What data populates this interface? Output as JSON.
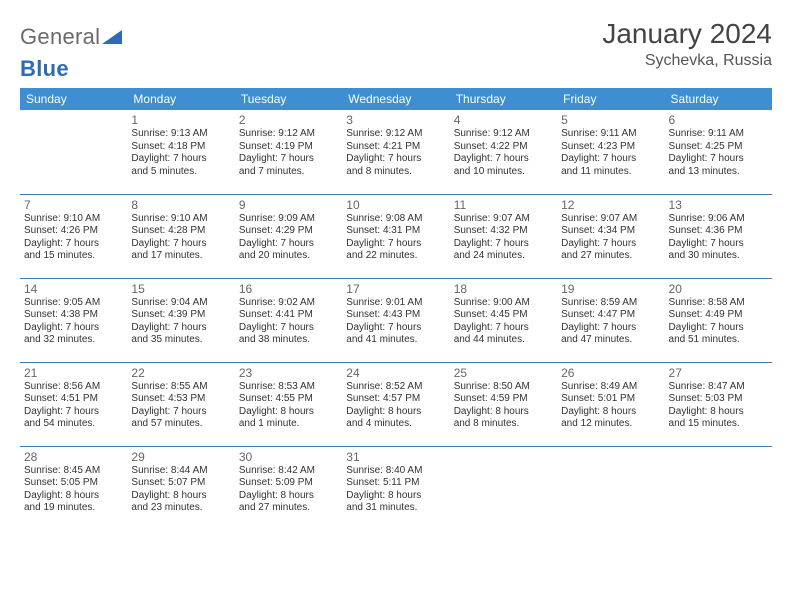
{
  "logo": {
    "part1": "General",
    "part2": "Blue"
  },
  "title": "January 2024",
  "location": "Sychevka, Russia",
  "colors": {
    "header_bg": "#3d8fd1",
    "header_text": "#ffffff",
    "row_border": "#3d7db0",
    "page_bg": "#ffffff",
    "logo_gray": "#6a6a6a",
    "logo_blue": "#2d6db3"
  },
  "typography": {
    "title_fontsize": 28,
    "location_fontsize": 16,
    "dayhead_fontsize": 12,
    "daynum_fontsize": 12,
    "body_fontsize": 10
  },
  "day_headers": [
    "Sunday",
    "Monday",
    "Tuesday",
    "Wednesday",
    "Thursday",
    "Friday",
    "Saturday"
  ],
  "weeks": [
    [
      {
        "num": "",
        "sunrise": "",
        "sunset": "",
        "daylight1": "",
        "daylight2": ""
      },
      {
        "num": "1",
        "sunrise": "Sunrise: 9:13 AM",
        "sunset": "Sunset: 4:18 PM",
        "daylight1": "Daylight: 7 hours",
        "daylight2": "and 5 minutes."
      },
      {
        "num": "2",
        "sunrise": "Sunrise: 9:12 AM",
        "sunset": "Sunset: 4:19 PM",
        "daylight1": "Daylight: 7 hours",
        "daylight2": "and 7 minutes."
      },
      {
        "num": "3",
        "sunrise": "Sunrise: 9:12 AM",
        "sunset": "Sunset: 4:21 PM",
        "daylight1": "Daylight: 7 hours",
        "daylight2": "and 8 minutes."
      },
      {
        "num": "4",
        "sunrise": "Sunrise: 9:12 AM",
        "sunset": "Sunset: 4:22 PM",
        "daylight1": "Daylight: 7 hours",
        "daylight2": "and 10 minutes."
      },
      {
        "num": "5",
        "sunrise": "Sunrise: 9:11 AM",
        "sunset": "Sunset: 4:23 PM",
        "daylight1": "Daylight: 7 hours",
        "daylight2": "and 11 minutes."
      },
      {
        "num": "6",
        "sunrise": "Sunrise: 9:11 AM",
        "sunset": "Sunset: 4:25 PM",
        "daylight1": "Daylight: 7 hours",
        "daylight2": "and 13 minutes."
      }
    ],
    [
      {
        "num": "7",
        "sunrise": "Sunrise: 9:10 AM",
        "sunset": "Sunset: 4:26 PM",
        "daylight1": "Daylight: 7 hours",
        "daylight2": "and 15 minutes."
      },
      {
        "num": "8",
        "sunrise": "Sunrise: 9:10 AM",
        "sunset": "Sunset: 4:28 PM",
        "daylight1": "Daylight: 7 hours",
        "daylight2": "and 17 minutes."
      },
      {
        "num": "9",
        "sunrise": "Sunrise: 9:09 AM",
        "sunset": "Sunset: 4:29 PM",
        "daylight1": "Daylight: 7 hours",
        "daylight2": "and 20 minutes."
      },
      {
        "num": "10",
        "sunrise": "Sunrise: 9:08 AM",
        "sunset": "Sunset: 4:31 PM",
        "daylight1": "Daylight: 7 hours",
        "daylight2": "and 22 minutes."
      },
      {
        "num": "11",
        "sunrise": "Sunrise: 9:07 AM",
        "sunset": "Sunset: 4:32 PM",
        "daylight1": "Daylight: 7 hours",
        "daylight2": "and 24 minutes."
      },
      {
        "num": "12",
        "sunrise": "Sunrise: 9:07 AM",
        "sunset": "Sunset: 4:34 PM",
        "daylight1": "Daylight: 7 hours",
        "daylight2": "and 27 minutes."
      },
      {
        "num": "13",
        "sunrise": "Sunrise: 9:06 AM",
        "sunset": "Sunset: 4:36 PM",
        "daylight1": "Daylight: 7 hours",
        "daylight2": "and 30 minutes."
      }
    ],
    [
      {
        "num": "14",
        "sunrise": "Sunrise: 9:05 AM",
        "sunset": "Sunset: 4:38 PM",
        "daylight1": "Daylight: 7 hours",
        "daylight2": "and 32 minutes."
      },
      {
        "num": "15",
        "sunrise": "Sunrise: 9:04 AM",
        "sunset": "Sunset: 4:39 PM",
        "daylight1": "Daylight: 7 hours",
        "daylight2": "and 35 minutes."
      },
      {
        "num": "16",
        "sunrise": "Sunrise: 9:02 AM",
        "sunset": "Sunset: 4:41 PM",
        "daylight1": "Daylight: 7 hours",
        "daylight2": "and 38 minutes."
      },
      {
        "num": "17",
        "sunrise": "Sunrise: 9:01 AM",
        "sunset": "Sunset: 4:43 PM",
        "daylight1": "Daylight: 7 hours",
        "daylight2": "and 41 minutes."
      },
      {
        "num": "18",
        "sunrise": "Sunrise: 9:00 AM",
        "sunset": "Sunset: 4:45 PM",
        "daylight1": "Daylight: 7 hours",
        "daylight2": "and 44 minutes."
      },
      {
        "num": "19",
        "sunrise": "Sunrise: 8:59 AM",
        "sunset": "Sunset: 4:47 PM",
        "daylight1": "Daylight: 7 hours",
        "daylight2": "and 47 minutes."
      },
      {
        "num": "20",
        "sunrise": "Sunrise: 8:58 AM",
        "sunset": "Sunset: 4:49 PM",
        "daylight1": "Daylight: 7 hours",
        "daylight2": "and 51 minutes."
      }
    ],
    [
      {
        "num": "21",
        "sunrise": "Sunrise: 8:56 AM",
        "sunset": "Sunset: 4:51 PM",
        "daylight1": "Daylight: 7 hours",
        "daylight2": "and 54 minutes."
      },
      {
        "num": "22",
        "sunrise": "Sunrise: 8:55 AM",
        "sunset": "Sunset: 4:53 PM",
        "daylight1": "Daylight: 7 hours",
        "daylight2": "and 57 minutes."
      },
      {
        "num": "23",
        "sunrise": "Sunrise: 8:53 AM",
        "sunset": "Sunset: 4:55 PM",
        "daylight1": "Daylight: 8 hours",
        "daylight2": "and 1 minute."
      },
      {
        "num": "24",
        "sunrise": "Sunrise: 8:52 AM",
        "sunset": "Sunset: 4:57 PM",
        "daylight1": "Daylight: 8 hours",
        "daylight2": "and 4 minutes."
      },
      {
        "num": "25",
        "sunrise": "Sunrise: 8:50 AM",
        "sunset": "Sunset: 4:59 PM",
        "daylight1": "Daylight: 8 hours",
        "daylight2": "and 8 minutes."
      },
      {
        "num": "26",
        "sunrise": "Sunrise: 8:49 AM",
        "sunset": "Sunset: 5:01 PM",
        "daylight1": "Daylight: 8 hours",
        "daylight2": "and 12 minutes."
      },
      {
        "num": "27",
        "sunrise": "Sunrise: 8:47 AM",
        "sunset": "Sunset: 5:03 PM",
        "daylight1": "Daylight: 8 hours",
        "daylight2": "and 15 minutes."
      }
    ],
    [
      {
        "num": "28",
        "sunrise": "Sunrise: 8:45 AM",
        "sunset": "Sunset: 5:05 PM",
        "daylight1": "Daylight: 8 hours",
        "daylight2": "and 19 minutes."
      },
      {
        "num": "29",
        "sunrise": "Sunrise: 8:44 AM",
        "sunset": "Sunset: 5:07 PM",
        "daylight1": "Daylight: 8 hours",
        "daylight2": "and 23 minutes."
      },
      {
        "num": "30",
        "sunrise": "Sunrise: 8:42 AM",
        "sunset": "Sunset: 5:09 PM",
        "daylight1": "Daylight: 8 hours",
        "daylight2": "and 27 minutes."
      },
      {
        "num": "31",
        "sunrise": "Sunrise: 8:40 AM",
        "sunset": "Sunset: 5:11 PM",
        "daylight1": "Daylight: 8 hours",
        "daylight2": "and 31 minutes."
      },
      {
        "num": "",
        "sunrise": "",
        "sunset": "",
        "daylight1": "",
        "daylight2": ""
      },
      {
        "num": "",
        "sunrise": "",
        "sunset": "",
        "daylight1": "",
        "daylight2": ""
      },
      {
        "num": "",
        "sunrise": "",
        "sunset": "",
        "daylight1": "",
        "daylight2": ""
      }
    ]
  ]
}
